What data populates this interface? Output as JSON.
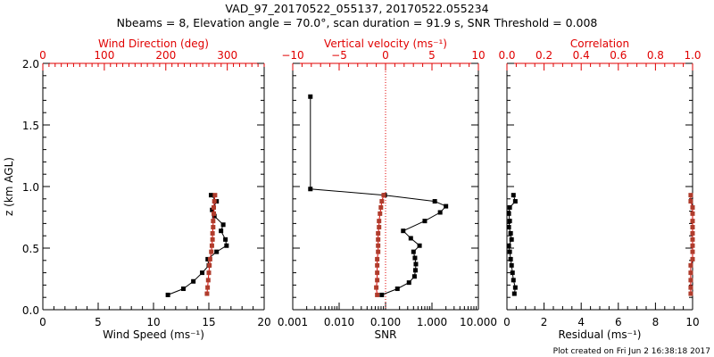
{
  "title_line1": "VAD_97_20170522_055137, 20170522.055234",
  "title_line2": "Nbeams = 8, Elevation angle = 70.0°, scan duration = 91.9 s, SNR Threshold = 0.008",
  "footer": "Plot created on Fri Jun  2 16:38:18 2017",
  "colors": {
    "primary": "#000000",
    "secondary": "#e00000",
    "marker_secondary": "#b03c2c"
  },
  "chart_data": [
    {
      "type": "line",
      "panel": "wind",
      "ylabel": "z (km AGL)",
      "ylim": [
        0,
        2.0
      ],
      "yticks": [
        "0.0",
        "0.5",
        "1.0",
        "1.5",
        "2.0"
      ],
      "bottom_axis": {
        "label": "Wind Speed (ms⁻¹)",
        "xlim": [
          0,
          20
        ],
        "ticks": [
          "0",
          "5",
          "10",
          "15",
          "20"
        ]
      },
      "top_axis": {
        "label": "Wind Direction (deg)",
        "xlim": [
          0,
          360
        ],
        "ticks": [
          "0",
          "100",
          "200",
          "300"
        ]
      },
      "series": [
        {
          "name": "Wind Speed",
          "axis": "bottom",
          "color": "#000000",
          "z": [
            0.93,
            0.88,
            0.81,
            0.76,
            0.69,
            0.64,
            0.57,
            0.52,
            0.47,
            0.41,
            0.36,
            0.3,
            0.23,
            0.17,
            0.12
          ],
          "values": [
            15.2,
            15.7,
            15.3,
            15.5,
            16.3,
            16.1,
            16.5,
            16.6,
            15.7,
            14.9,
            15.0,
            14.4,
            13.6,
            12.7,
            11.3
          ]
        },
        {
          "name": "Wind Direction",
          "axis": "top",
          "color": "#b03c2c",
          "z": [
            0.93,
            0.88,
            0.83,
            0.78,
            0.72,
            0.67,
            0.62,
            0.57,
            0.52,
            0.47,
            0.41,
            0.36,
            0.3,
            0.24,
            0.18,
            0.13
          ],
          "values": [
            280,
            279,
            278,
            278,
            277,
            277,
            276,
            276,
            275,
            274,
            272,
            271,
            270,
            269,
            268,
            267
          ]
        }
      ]
    },
    {
      "type": "line",
      "panel": "snr",
      "ylim": [
        0,
        2.0
      ],
      "bottom_axis": {
        "label": "SNR",
        "scale": "log",
        "xlim": [
          0.001,
          10
        ],
        "ticks": [
          "0.001",
          "0.010",
          "0.100",
          "1.000",
          "10.000"
        ]
      },
      "top_axis": {
        "label": "Vertical velocity (ms⁻¹)",
        "xlim": [
          -10,
          10
        ],
        "ticks": [
          "−10",
          "−5",
          "0",
          "5",
          "10"
        ]
      },
      "reference_line": {
        "axis": "top",
        "value": 0
      },
      "series": [
        {
          "name": "SNR",
          "axis": "bottom",
          "color": "#000000",
          "z": [
            1.73,
            0.98,
            0.93,
            0.88,
            0.84,
            0.79,
            0.72,
            0.64,
            0.58,
            0.52,
            0.47,
            0.42,
            0.37,
            0.32,
            0.27,
            0.22,
            0.17,
            0.12
          ],
          "values": [
            0.0024,
            0.0024,
            0.096,
            1.15,
            2.0,
            1.5,
            0.7,
            0.24,
            0.35,
            0.54,
            0.4,
            0.43,
            0.45,
            0.44,
            0.42,
            0.32,
            0.18,
            0.083
          ]
        },
        {
          "name": "Vertical velocity",
          "axis": "top",
          "color": "#b03c2c",
          "z": [
            0.93,
            0.88,
            0.83,
            0.78,
            0.72,
            0.67,
            0.62,
            0.57,
            0.52,
            0.47,
            0.41,
            0.36,
            0.3,
            0.24,
            0.18,
            0.12
          ],
          "values": [
            -0.2,
            -0.4,
            -0.5,
            -0.6,
            -0.7,
            -0.7,
            -0.8,
            -0.8,
            -0.8,
            -0.8,
            -0.9,
            -0.9,
            -0.9,
            -0.9,
            -1.0,
            -0.9
          ]
        }
      ]
    },
    {
      "type": "line",
      "panel": "residual",
      "ylim": [
        0,
        2.0
      ],
      "bottom_axis": {
        "label": "Residual (ms⁻¹)",
        "xlim": [
          0,
          10
        ],
        "ticks": [
          "0",
          "2",
          "4",
          "6",
          "8",
          "10"
        ]
      },
      "top_axis": {
        "label": "Correlation",
        "xlim": [
          0.0,
          1.0
        ],
        "ticks": [
          "0.0",
          "0.2",
          "0.4",
          "0.6",
          "0.8",
          "1.0"
        ]
      },
      "series": [
        {
          "name": "Residual",
          "axis": "bottom",
          "color": "#000000",
          "z": [
            0.93,
            0.88,
            0.83,
            0.78,
            0.72,
            0.67,
            0.62,
            0.57,
            0.52,
            0.47,
            0.41,
            0.36,
            0.3,
            0.24,
            0.18,
            0.13
          ],
          "values": [
            0.35,
            0.45,
            0.15,
            0.1,
            0.15,
            0.1,
            0.2,
            0.25,
            0.1,
            0.15,
            0.2,
            0.25,
            0.3,
            0.35,
            0.45,
            0.4
          ]
        },
        {
          "name": "Correlation",
          "axis": "top",
          "color": "#b03c2c",
          "z": [
            0.93,
            0.88,
            0.83,
            0.78,
            0.72,
            0.67,
            0.62,
            0.57,
            0.52,
            0.47,
            0.41,
            0.36,
            0.3,
            0.24,
            0.18,
            0.13
          ],
          "values": [
            0.99,
            0.99,
            1.0,
            1.0,
            1.0,
            1.0,
            1.0,
            1.0,
            1.0,
            1.0,
            1.0,
            0.99,
            0.99,
            0.99,
            0.99,
            0.99
          ]
        }
      ]
    }
  ]
}
